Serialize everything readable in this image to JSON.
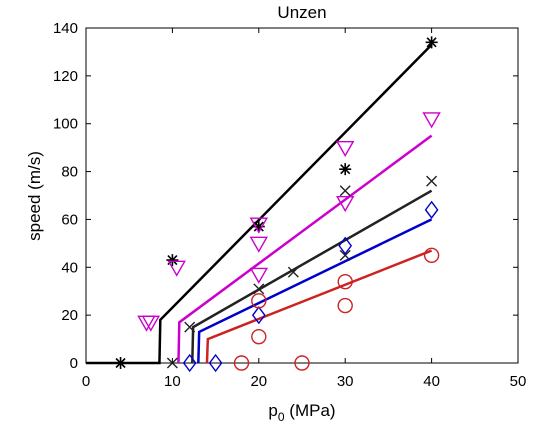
{
  "chart_data": {
    "type": "line",
    "title": "Unzen",
    "xlabel_main": "p",
    "xlabel_sub": "0",
    "xlabel_unit": " (MPa)",
    "ylabel": "speed (m/s)",
    "xlim": [
      0,
      50
    ],
    "ylim": [
      0,
      140
    ],
    "xticks": [
      0,
      10,
      20,
      30,
      40,
      50
    ],
    "yticks": [
      0,
      20,
      40,
      60,
      80,
      100,
      120,
      140
    ],
    "grid": false,
    "series": [
      {
        "color": "#000000",
        "marker": "asterisk",
        "line": [
          [
            0,
            0
          ],
          [
            8.5,
            0
          ],
          [
            8.6,
            18
          ],
          [
            40,
            133
          ]
        ],
        "points": [
          [
            4,
            0
          ],
          [
            10,
            43
          ],
          [
            20,
            57
          ],
          [
            30,
            81
          ],
          [
            40,
            134
          ]
        ]
      },
      {
        "color": "#cc00cc",
        "marker": "triangle-down",
        "line": [
          [
            10.7,
            0
          ],
          [
            10.8,
            17
          ],
          [
            40,
            95
          ]
        ],
        "points": [
          [
            7,
            17
          ],
          [
            7.5,
            17
          ],
          [
            10.5,
            40
          ],
          [
            20,
            58
          ],
          [
            20,
            50
          ],
          [
            20,
            37
          ],
          [
            30,
            90
          ],
          [
            30,
            67
          ],
          [
            40,
            102
          ]
        ]
      },
      {
        "color": "#222222",
        "marker": "x",
        "line": [
          [
            12.3,
            0
          ],
          [
            12.4,
            15
          ],
          [
            40,
            72
          ]
        ],
        "points": [
          [
            10,
            0
          ],
          [
            12,
            15
          ],
          [
            20,
            31
          ],
          [
            24,
            38
          ],
          [
            30,
            72
          ],
          [
            30,
            45
          ],
          [
            40,
            76
          ]
        ]
      },
      {
        "color": "#0000cc",
        "marker": "diamond",
        "line": [
          [
            13,
            0
          ],
          [
            13.1,
            13
          ],
          [
            40,
            60
          ]
        ],
        "points": [
          [
            12,
            0
          ],
          [
            15,
            0
          ],
          [
            20,
            20
          ],
          [
            30,
            49
          ],
          [
            40,
            64
          ]
        ]
      },
      {
        "color": "#cc2222",
        "marker": "circle",
        "line": [
          [
            14,
            0
          ],
          [
            14.1,
            10
          ],
          [
            40,
            47
          ]
        ],
        "points": [
          [
            18,
            0
          ],
          [
            25,
            0
          ],
          [
            20,
            26
          ],
          [
            20,
            11
          ],
          [
            30,
            34
          ],
          [
            30,
            24
          ],
          [
            40,
            45
          ]
        ]
      }
    ]
  }
}
